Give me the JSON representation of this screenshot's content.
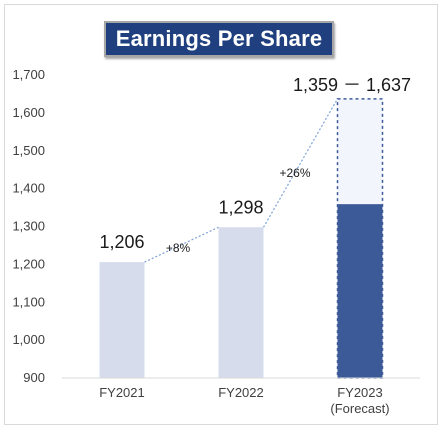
{
  "chart_data": {
    "type": "bar",
    "title": "Earnings Per Share",
    "categories": [
      "FY2021",
      "FY2022",
      "FY2023"
    ],
    "category_sublabels": [
      "",
      "",
      "(Forecast)"
    ],
    "values": [
      1206,
      1298,
      1359
    ],
    "value_labels": [
      "1,206",
      "1,298",
      "1,359 － 1,637"
    ],
    "forecast_range": {
      "category": "FY2023",
      "low": 1359,
      "high": 1637
    },
    "growth_annotations": [
      {
        "from": "FY2021",
        "to": "FY2022",
        "label": "+8%"
      },
      {
        "from": "FY2022",
        "to": "FY2023",
        "label": "+26%"
      }
    ],
    "ylim": [
      900,
      1700
    ],
    "yticks": [
      900,
      1000,
      1100,
      1200,
      1300,
      1400,
      1500,
      1600,
      1700
    ],
    "ytick_labels": [
      "900",
      "1,000",
      "1,100",
      "1,200",
      "1,300",
      "1,400",
      "1,500",
      "1,600",
      "1,700"
    ],
    "xlabel": "",
    "ylabel": "",
    "grid": false,
    "colors": {
      "actual_bar": "#d6dcec",
      "forecast_bar": "#3d5a98",
      "forecast_range_fill": "#f2f6fc",
      "dashed_outline": "#3d5a98",
      "connector": "#7da2d6",
      "title_bg": "#1f3f7f"
    }
  }
}
